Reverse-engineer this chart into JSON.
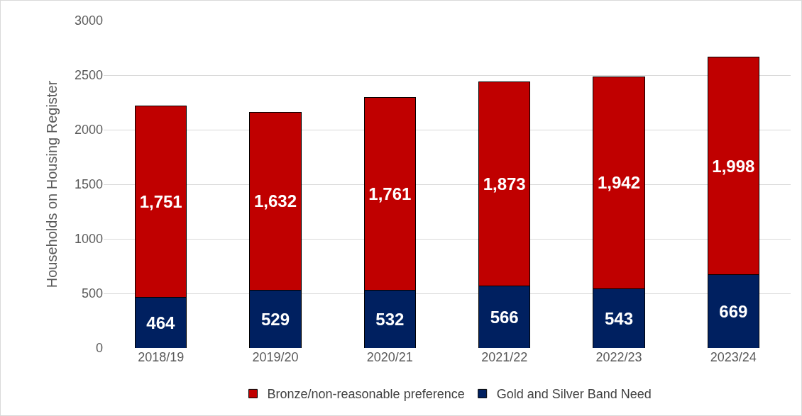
{
  "chart_data": {
    "type": "bar",
    "stacked": true,
    "ylabel": "Households on Housing Register",
    "categories": [
      "2018/19",
      "2019/20",
      "2020/21",
      "2021/22",
      "2022/23",
      "2023/24"
    ],
    "series": [
      {
        "name": "Gold and Silver Band Need",
        "color": "#002060",
        "values": [
          464,
          529,
          532,
          566,
          543,
          669
        ],
        "value_labels": [
          "464",
          "529",
          "532",
          "566",
          "543",
          "669"
        ]
      },
      {
        "name": "Bronze/non-reasonable preference",
        "color": "#c00000",
        "values": [
          1751,
          1632,
          1761,
          1873,
          1942,
          1998
        ],
        "value_labels": [
          "1,751",
          "1,632",
          "1,761",
          "1,873",
          "1,942",
          "1,998"
        ]
      }
    ],
    "ylim": [
      0,
      3000
    ],
    "yticks": [
      0,
      500,
      1000,
      1500,
      2000,
      2500,
      3000
    ],
    "grid": "y",
    "legend": "bottom"
  }
}
